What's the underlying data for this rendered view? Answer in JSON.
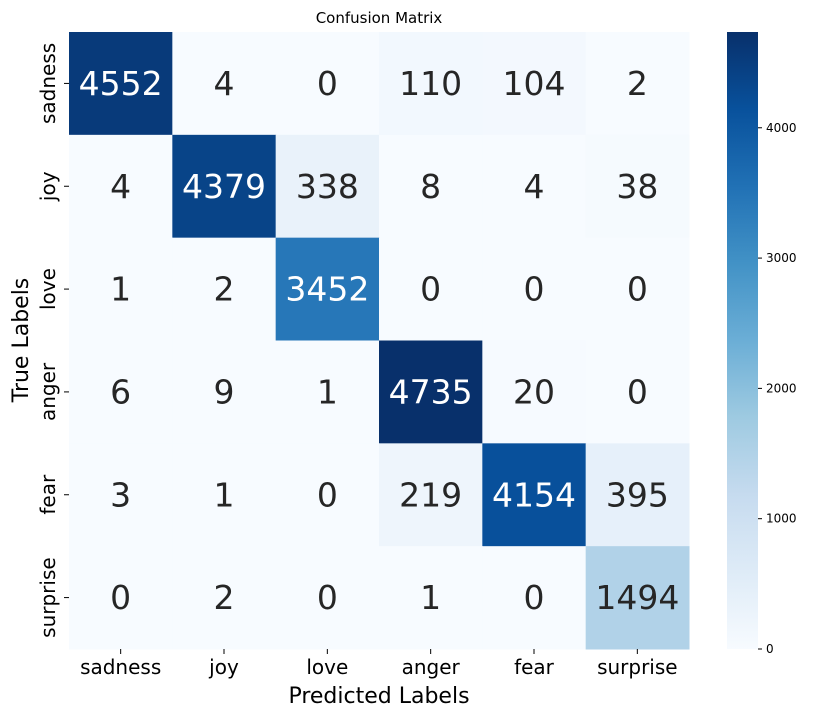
{
  "chart_data": {
    "type": "heatmap",
    "title": "Confusion Matrix",
    "xlabel": "Predicted Labels",
    "ylabel": "True Labels",
    "x_categories": [
      "sadness",
      "joy",
      "love",
      "anger",
      "fear",
      "surprise"
    ],
    "y_categories": [
      "sadness",
      "joy",
      "love",
      "anger",
      "fear",
      "surprise"
    ],
    "values": [
      [
        4552,
        4,
        0,
        110,
        104,
        2
      ],
      [
        4,
        4379,
        338,
        8,
        4,
        38
      ],
      [
        1,
        2,
        3452,
        0,
        0,
        0
      ],
      [
        6,
        9,
        1,
        4735,
        20,
        0
      ],
      [
        3,
        1,
        0,
        219,
        4154,
        395
      ],
      [
        0,
        2,
        0,
        1,
        0,
        1494
      ]
    ],
    "colorbar": {
      "range": [
        0,
        4735
      ],
      "ticks": [
        0,
        1000,
        2000,
        3000,
        4000
      ],
      "colormap": "Blues"
    }
  }
}
